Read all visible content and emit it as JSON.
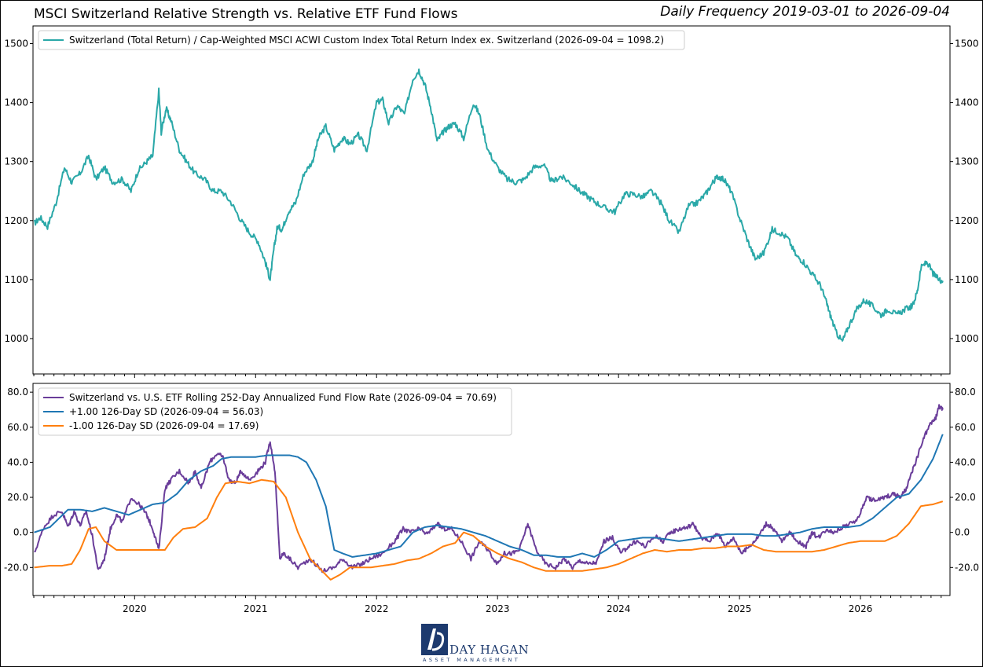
{
  "header": {
    "title": "MSCI Switzerland Relative Strength vs. Relative ETF Fund Flows",
    "subtitle": "Daily Frequency 2019-03-01 to 2026-09-04"
  },
  "logo": {
    "name": "DAY HAGAN",
    "tagline": "ASSET MANAGEMENT"
  },
  "chart_data": [
    {
      "type": "line",
      "panel": "top",
      "ylim": [
        940,
        1530
      ],
      "yticks": [
        1000,
        1100,
        1200,
        1300,
        1400,
        1500
      ],
      "ytick_labels": [
        "1000",
        "1100",
        "1200",
        "1300",
        "1400",
        "1500"
      ],
      "xlim": [
        2019.16,
        2026.74
      ],
      "grid": false,
      "legend_placement": "top-left",
      "series": [
        {
          "name": "Switzerland (Total Return) / Cap-Weighted MSCI ACWI Custom Index Total Return Index ex. Switzerland (2026-09-04 = 1098.2)",
          "color": "#2aa8a8",
          "x": [
            2019.17,
            2019.22,
            2019.28,
            2019.35,
            2019.42,
            2019.48,
            2019.55,
            2019.62,
            2019.68,
            2019.75,
            2019.82,
            2019.9,
            2019.97,
            2020.03,
            2020.1,
            2020.15,
            2020.2,
            2020.22,
            2020.26,
            2020.3,
            2020.37,
            2020.43,
            2020.5,
            2020.58,
            2020.65,
            2020.72,
            2020.8,
            2020.88,
            2020.95,
            2021.02,
            2021.08,
            2021.12,
            2021.15,
            2021.18,
            2021.22,
            2021.27,
            2021.33,
            2021.4,
            2021.47,
            2021.52,
            2021.58,
            2021.65,
            2021.72,
            2021.78,
            2021.85,
            2021.92,
            2022.0,
            2022.05,
            2022.1,
            2022.17,
            2022.23,
            2022.3,
            2022.35,
            2022.4,
            2022.45,
            2022.5,
            2022.55,
            2022.6,
            2022.65,
            2022.72,
            2022.8,
            2022.85,
            2022.92,
            2023.0,
            2023.08,
            2023.15,
            2023.22,
            2023.3,
            2023.38,
            2023.45,
            2023.52,
            2023.6,
            2023.68,
            2023.75,
            2023.82,
            2023.9,
            2023.97,
            2024.05,
            2024.12,
            2024.2,
            2024.27,
            2024.35,
            2024.42,
            2024.5,
            2024.58,
            2024.65,
            2024.72,
            2024.78,
            2024.82,
            2024.87,
            2024.93,
            2025.0,
            2025.07,
            2025.13,
            2025.2,
            2025.27,
            2025.33,
            2025.4,
            2025.47,
            2025.53,
            2025.6,
            2025.67,
            2025.72,
            2025.75,
            2025.8,
            2025.85,
            2025.9,
            2025.97,
            2026.03,
            2026.1,
            2026.17,
            2026.23,
            2026.3,
            2026.37,
            2026.43,
            2026.47,
            2026.5,
            2026.55,
            2026.6,
            2026.65,
            2026.68
          ],
          "y": [
            1195,
            1205,
            1190,
            1230,
            1290,
            1265,
            1280,
            1310,
            1270,
            1290,
            1265,
            1270,
            1250,
            1285,
            1300,
            1310,
            1420,
            1350,
            1390,
            1370,
            1320,
            1300,
            1280,
            1270,
            1250,
            1250,
            1230,
            1200,
            1180,
            1165,
            1130,
            1100,
            1150,
            1190,
            1185,
            1215,
            1230,
            1280,
            1300,
            1340,
            1360,
            1320,
            1340,
            1330,
            1345,
            1320,
            1400,
            1405,
            1365,
            1395,
            1380,
            1440,
            1455,
            1430,
            1390,
            1335,
            1350,
            1360,
            1365,
            1340,
            1400,
            1380,
            1320,
            1290,
            1270,
            1265,
            1270,
            1290,
            1295,
            1265,
            1275,
            1265,
            1250,
            1240,
            1230,
            1220,
            1215,
            1245,
            1245,
            1240,
            1250,
            1230,
            1200,
            1180,
            1225,
            1230,
            1245,
            1265,
            1275,
            1270,
            1250,
            1205,
            1165,
            1135,
            1145,
            1185,
            1180,
            1170,
            1140,
            1130,
            1110,
            1090,
            1060,
            1040,
            1010,
            995,
            1020,
            1050,
            1065,
            1055,
            1040,
            1050,
            1040,
            1050,
            1055,
            1080,
            1120,
            1130,
            1110,
            1100,
            1098
          ]
        }
      ]
    },
    {
      "type": "line",
      "panel": "bottom",
      "ylim": [
        -36,
        85
      ],
      "yticks": [
        -20,
        0,
        20,
        40,
        60,
        80
      ],
      "ytick_labels": [
        "-20.0",
        "0.0",
        "20.0",
        "40.0",
        "60.0",
        "80.0"
      ],
      "xlim": [
        2019.16,
        2026.74
      ],
      "xticks": [
        2020,
        2021,
        2022,
        2023,
        2024,
        2025,
        2026
      ],
      "xtick_labels": [
        "2020",
        "2021",
        "2022",
        "2023",
        "2024",
        "2025",
        "2026"
      ],
      "grid": false,
      "legend_placement": "top-left",
      "series": [
        {
          "name": "Switzerland vs. U.S. ETF Rolling 252-Day Annualized Fund Flow Rate (2026-09-04 = 70.69)",
          "color": "#6a3d9a",
          "x": [
            2019.17,
            2019.25,
            2019.33,
            2019.4,
            2019.45,
            2019.5,
            2019.55,
            2019.6,
            2019.65,
            2019.7,
            2019.75,
            2019.8,
            2019.85,
            2019.9,
            2019.97,
            2020.05,
            2020.1,
            2020.15,
            2020.2,
            2020.25,
            2020.3,
            2020.37,
            2020.45,
            2020.5,
            2020.55,
            2020.62,
            2020.68,
            2020.73,
            2020.78,
            2020.83,
            2020.88,
            2020.95,
            2021.02,
            2021.08,
            2021.12,
            2021.16,
            2021.2,
            2021.23,
            2021.28,
            2021.35,
            2021.45,
            2021.55,
            2021.65,
            2021.72,
            2021.8,
            2021.88,
            2021.95,
            2022.05,
            2022.15,
            2022.22,
            2022.28,
            2022.35,
            2022.42,
            2022.5,
            2022.55,
            2022.62,
            2022.7,
            2022.78,
            2022.85,
            2022.92,
            2023.0,
            2023.05,
            2023.12,
            2023.18,
            2023.25,
            2023.32,
            2023.4,
            2023.48,
            2023.55,
            2023.62,
            2023.68,
            2023.75,
            2023.82,
            2023.88,
            2023.95,
            2024.02,
            2024.08,
            2024.15,
            2024.22,
            2024.3,
            2024.37,
            2024.43,
            2024.5,
            2024.57,
            2024.62,
            2024.68,
            2024.75,
            2024.82,
            2024.88,
            2024.95,
            2025.02,
            2025.08,
            2025.15,
            2025.22,
            2025.28,
            2025.35,
            2025.42,
            2025.48,
            2025.55,
            2025.6,
            2025.65,
            2025.72,
            2025.78,
            2025.85,
            2025.92,
            2025.98,
            2026.05,
            2026.12,
            2026.2,
            2026.27,
            2026.33,
            2026.38,
            2026.43,
            2026.48,
            2026.53,
            2026.58,
            2026.62,
            2026.65,
            2026.68
          ],
          "y": [
            -12,
            3,
            10,
            12,
            3,
            12,
            4,
            12,
            -2,
            -22,
            -15,
            2,
            10,
            6,
            20,
            15,
            10,
            2,
            -10,
            25,
            30,
            35,
            28,
            35,
            25,
            40,
            45,
            43,
            30,
            28,
            35,
            30,
            35,
            40,
            52,
            35,
            -15,
            -12,
            -15,
            -20,
            -15,
            -22,
            -20,
            -15,
            -20,
            -18,
            -15,
            -12,
            -5,
            2,
            0,
            2,
            -1,
            5,
            2,
            2,
            -5,
            -15,
            -5,
            -10,
            -18,
            -12,
            -12,
            -10,
            5,
            -10,
            -18,
            -20,
            -15,
            -20,
            -16,
            -18,
            -17,
            -5,
            -3,
            -12,
            -8,
            -5,
            -8,
            -2,
            -5,
            0,
            2,
            3,
            5,
            -3,
            -5,
            0,
            -8,
            -3,
            -12,
            -8,
            -3,
            5,
            2,
            -5,
            0,
            -5,
            -8,
            0,
            -3,
            2,
            0,
            3,
            5,
            8,
            20,
            18,
            20,
            22,
            20,
            25,
            35,
            45,
            55,
            62,
            65,
            72,
            70
          ]
        },
        {
          "name": "+1.00 126-Day SD (2026-09-04 = 56.03)",
          "color": "#1f77b4",
          "x": [
            2019.17,
            2019.3,
            2019.45,
            2019.55,
            2019.65,
            2019.75,
            2019.85,
            2019.95,
            2020.05,
            2020.15,
            2020.25,
            2020.35,
            2020.45,
            2020.55,
            2020.65,
            2020.72,
            2020.8,
            2020.9,
            2021.0,
            2021.1,
            2021.2,
            2021.28,
            2021.35,
            2021.42,
            2021.5,
            2021.58,
            2021.65,
            2021.72,
            2021.8,
            2021.9,
            2022.0,
            2022.1,
            2022.2,
            2022.3,
            2022.4,
            2022.5,
            2022.6,
            2022.7,
            2022.8,
            2022.9,
            2023.0,
            2023.1,
            2023.2,
            2023.3,
            2023.4,
            2023.5,
            2023.6,
            2023.7,
            2023.8,
            2023.9,
            2024.0,
            2024.1,
            2024.2,
            2024.3,
            2024.4,
            2024.5,
            2024.6,
            2024.7,
            2024.8,
            2024.9,
            2025.0,
            2025.1,
            2025.2,
            2025.3,
            2025.4,
            2025.5,
            2025.6,
            2025.7,
            2025.8,
            2025.9,
            2026.0,
            2026.1,
            2026.2,
            2026.3,
            2026.4,
            2026.5,
            2026.6,
            2026.68
          ],
          "y": [
            0,
            3,
            13,
            13,
            12,
            14,
            12,
            10,
            13,
            16,
            17,
            22,
            30,
            35,
            38,
            42,
            43,
            43,
            43,
            44,
            44,
            44,
            43,
            40,
            30,
            15,
            -10,
            -12,
            -14,
            -13,
            -12,
            -10,
            -8,
            0,
            3,
            4,
            3,
            2,
            0,
            -2,
            -5,
            -8,
            -10,
            -13,
            -13,
            -14,
            -14,
            -12,
            -14,
            -10,
            -5,
            -4,
            -3,
            -3,
            -4,
            -5,
            -4,
            -3,
            -2,
            -1,
            -1,
            -1,
            -2,
            -2,
            -1,
            0,
            2,
            3,
            3,
            3,
            4,
            8,
            14,
            20,
            22,
            30,
            42,
            56
          ]
        },
        {
          "name": "-1.00 126-Day SD (2026-09-04 = 17.69)",
          "color": "#ff7f0e",
          "x": [
            2019.17,
            2019.3,
            2019.4,
            2019.48,
            2019.55,
            2019.62,
            2019.68,
            2019.75,
            2019.85,
            2019.95,
            2020.05,
            2020.15,
            2020.25,
            2020.32,
            2020.4,
            2020.5,
            2020.6,
            2020.68,
            2020.75,
            2020.85,
            2020.95,
            2021.05,
            2021.15,
            2021.25,
            2021.35,
            2021.45,
            2021.55,
            2021.62,
            2021.7,
            2021.78,
            2021.85,
            2021.95,
            2022.05,
            2022.15,
            2022.25,
            2022.35,
            2022.45,
            2022.55,
            2022.65,
            2022.72,
            2022.8,
            2022.9,
            2023.0,
            2023.1,
            2023.2,
            2023.3,
            2023.4,
            2023.5,
            2023.6,
            2023.7,
            2023.8,
            2023.9,
            2024.0,
            2024.1,
            2024.2,
            2024.3,
            2024.4,
            2024.5,
            2024.6,
            2024.7,
            2024.8,
            2024.9,
            2025.0,
            2025.1,
            2025.2,
            2025.3,
            2025.4,
            2025.5,
            2025.6,
            2025.7,
            2025.8,
            2025.9,
            2026.0,
            2026.1,
            2026.2,
            2026.3,
            2026.4,
            2026.5,
            2026.6,
            2026.68
          ],
          "y": [
            -20,
            -19,
            -19,
            -18,
            -10,
            2,
            3,
            -5,
            -10,
            -10,
            -10,
            -10,
            -10,
            -3,
            2,
            3,
            8,
            20,
            28,
            29,
            28,
            30,
            29,
            20,
            0,
            -15,
            -22,
            -27,
            -24,
            -20,
            -20,
            -20,
            -19,
            -18,
            -16,
            -15,
            -12,
            -8,
            -6,
            0,
            -2,
            -8,
            -12,
            -15,
            -17,
            -20,
            -22,
            -22,
            -22,
            -22,
            -21,
            -20,
            -18,
            -15,
            -12,
            -10,
            -11,
            -10,
            -10,
            -9,
            -9,
            -8,
            -8,
            -7,
            -10,
            -11,
            -11,
            -11,
            -11,
            -10,
            -8,
            -6,
            -5,
            -5,
            -5,
            -2,
            5,
            15,
            16,
            17.7
          ]
        }
      ]
    }
  ]
}
